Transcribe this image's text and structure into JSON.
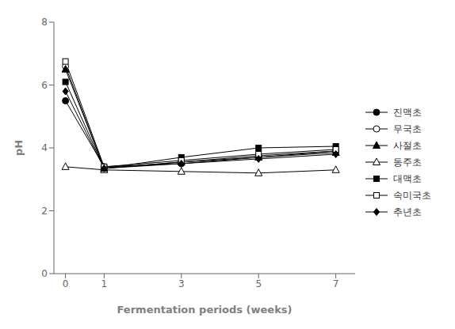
{
  "chart_data": {
    "type": "line",
    "x": [
      0,
      1,
      3,
      5,
      7
    ],
    "series": [
      {
        "name": "진맥초",
        "values": [
          5.5,
          3.4,
          3.5,
          3.7,
          3.9
        ],
        "marker": "circle",
        "color": "black"
      },
      {
        "name": "무국초",
        "values": [
          6.6,
          3.35,
          3.55,
          3.75,
          3.9
        ],
        "marker": "circle_open",
        "color": "black"
      },
      {
        "name": "사절초",
        "values": [
          6.5,
          3.35,
          3.55,
          3.7,
          3.85
        ],
        "marker": "triangle",
        "color": "black"
      },
      {
        "name": "동주초",
        "values": [
          3.4,
          3.3,
          3.25,
          3.2,
          3.3
        ],
        "marker": "triangle_open",
        "color": "black"
      },
      {
        "name": "대맥초",
        "values": [
          6.1,
          3.35,
          3.7,
          4.0,
          4.05
        ],
        "marker": "square",
        "color": "black"
      },
      {
        "name": "속미국초",
        "values": [
          6.75,
          3.4,
          3.6,
          3.8,
          3.95
        ],
        "marker": "square_open",
        "color": "black"
      },
      {
        "name": "추년초",
        "values": [
          5.8,
          3.35,
          3.5,
          3.65,
          3.8
        ],
        "marker": "diamond",
        "color": "black"
      }
    ],
    "xlabel": "Fermentation periods (weeks)",
    "ylabel": "pH",
    "xlim": [
      -0.3,
      7.5
    ],
    "xticks": [
      0,
      1,
      3,
      5,
      7
    ],
    "ylim": [
      0,
      8
    ],
    "yticks": [
      0,
      2,
      4,
      6,
      8
    ],
    "grid": false,
    "legend": "right"
  }
}
